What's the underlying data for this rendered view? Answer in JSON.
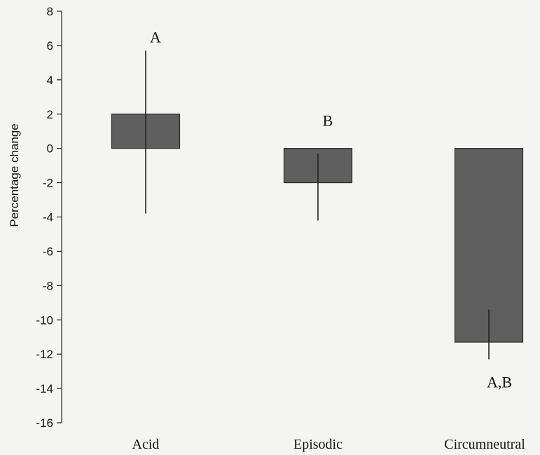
{
  "chart_data": {
    "type": "bar",
    "ylabel": "Percentage change",
    "ylim": [
      -16,
      8
    ],
    "yticks": [
      8,
      6,
      4,
      2,
      0,
      -2,
      -4,
      -6,
      -8,
      -10,
      -12,
      -14,
      -16
    ],
    "categories": [
      "Acid",
      "Episodic",
      "Circumneutral"
    ],
    "values": [
      2.0,
      -2.0,
      -11.3
    ],
    "error_bars": [
      {
        "low": -3.8,
        "high": 5.7
      },
      {
        "low": -4.2,
        "high": -0.3
      },
      {
        "low": -12.3,
        "high": -9.4
      }
    ],
    "significance_labels": [
      "A",
      "B",
      "A,B"
    ],
    "bar_color": "#5f5f5f",
    "grid": false
  }
}
